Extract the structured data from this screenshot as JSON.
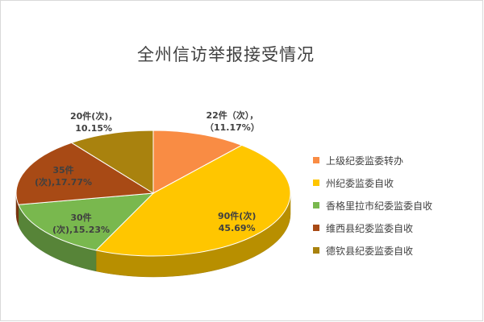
{
  "chart_data": {
    "type": "pie",
    "title": "全州信访举报接受情况",
    "style": "3d",
    "legend_position": "right",
    "slices": [
      {
        "label": "上级纪委监委转办",
        "value": 22,
        "percent": 11.17,
        "color": "#F98C44",
        "data_label": [
          "22件（次），",
          "（11.17%）"
        ]
      },
      {
        "label": "州纪委监委自收",
        "value": 90,
        "percent": 45.69,
        "color": "#FFC600",
        "data_label": [
          "90件(次)",
          "45.69%"
        ]
      },
      {
        "label": "香格里拉市纪委监委自收",
        "value": 30,
        "percent": 15.23,
        "color": "#79B84E",
        "data_label": [
          "30件",
          "(次),15.23%"
        ]
      },
      {
        "label": "维西县纪委监委自收",
        "value": 35,
        "percent": 17.77,
        "color": "#A84A15",
        "data_label": [
          "35件",
          "(次),17.77%"
        ]
      },
      {
        "label": "德钦县纪委监委自收",
        "value": 20,
        "percent": 10.15,
        "color": "#A9820E",
        "data_label": [
          "20件(次)，",
          "10.15%"
        ]
      }
    ]
  }
}
